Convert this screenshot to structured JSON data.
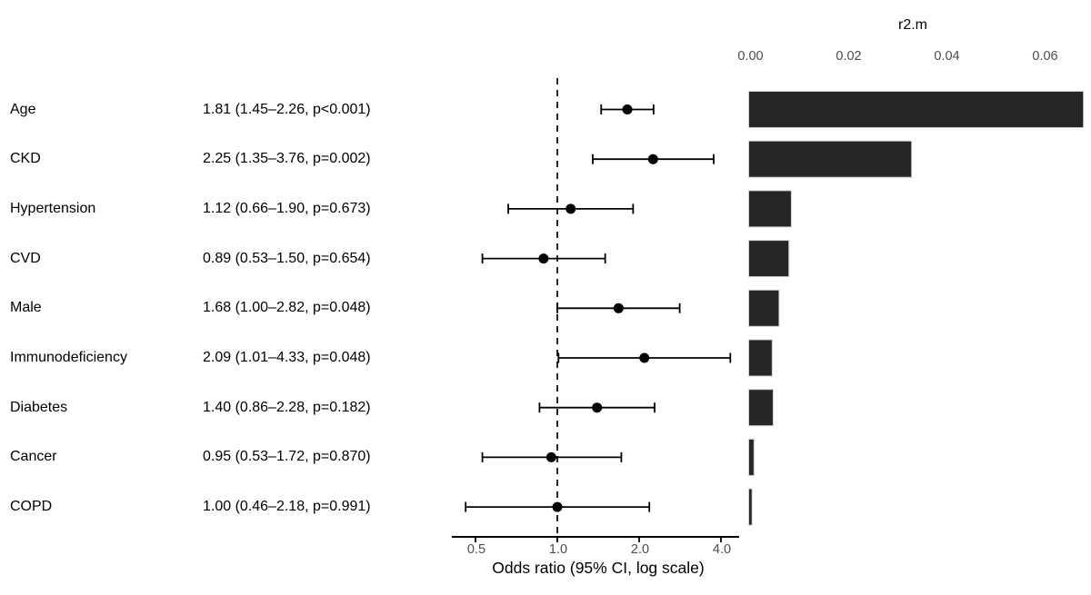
{
  "figure": {
    "background": "#ffffff",
    "text_color": "#000000",
    "tick_text_color": "#4d4d4d",
    "point_color": "#000000",
    "ci_line_color": "#000000",
    "reference_line_color": "#000000",
    "bar_fill": "#262626",
    "bar_border": "#cfcfcf",
    "axis_line_color": "#000000"
  },
  "chart_data": [
    {
      "type": "scatter",
      "subtype": "forest-plot",
      "xlabel": "Odds ratio (95% CI, log scale)",
      "x_scale": "log",
      "x_ticks": [
        "0.5",
        "1.0",
        "2.0",
        "4.0"
      ],
      "x_tick_values": [
        0.5,
        1.0,
        2.0,
        4.0
      ],
      "x_range": [
        0.41,
        4.8
      ],
      "reference_line": 1.0,
      "grid": "off",
      "rows": [
        {
          "label": "Age",
          "estimate": "1.81 (1.45–2.26, p<0.001)",
          "or": 1.81,
          "lo": 1.45,
          "hi": 2.26,
          "p": "<0.001"
        },
        {
          "label": "CKD",
          "estimate": "2.25 (1.35–3.76, p=0.002)",
          "or": 2.25,
          "lo": 1.35,
          "hi": 3.76,
          "p": "0.002"
        },
        {
          "label": "Hypertension",
          "estimate": "1.12 (0.66–1.90, p=0.673)",
          "or": 1.12,
          "lo": 0.66,
          "hi": 1.9,
          "p": "0.673"
        },
        {
          "label": "CVD",
          "estimate": "0.89 (0.53–1.50, p=0.654)",
          "or": 0.89,
          "lo": 0.53,
          "hi": 1.5,
          "p": "0.654"
        },
        {
          "label": "Male",
          "estimate": "1.68 (1.00–2.82, p=0.048)",
          "or": 1.68,
          "lo": 1.0,
          "hi": 2.82,
          "p": "0.048"
        },
        {
          "label": "Immunodeficiency",
          "estimate": "2.09 (1.01–4.33, p=0.048)",
          "or": 2.09,
          "lo": 1.01,
          "hi": 4.33,
          "p": "0.048"
        },
        {
          "label": "Diabetes",
          "estimate": "1.40 (0.86–2.28, p=0.182)",
          "or": 1.4,
          "lo": 0.86,
          "hi": 2.28,
          "p": "0.182"
        },
        {
          "label": "Cancer",
          "estimate": "0.95 (0.53–1.72, p=0.870)",
          "or": 0.95,
          "lo": 0.53,
          "hi": 1.72,
          "p": "0.870"
        },
        {
          "label": "COPD",
          "estimate": "1.00 (0.46–2.18, p=0.991)",
          "or": 1.0,
          "lo": 0.46,
          "hi": 2.18,
          "p": "0.991"
        }
      ]
    },
    {
      "type": "bar",
      "orientation": "horizontal",
      "title": "r2.m",
      "categories": [
        "Age",
        "CKD",
        "Hypertension",
        "CVD",
        "Male",
        "Immunodeficiency",
        "Diabetes",
        "Cancer",
        "COPD"
      ],
      "values": [
        0.068,
        0.033,
        0.0085,
        0.008,
        0.006,
        0.0046,
        0.0048,
        0.0009,
        0.0005
      ],
      "x_ticks": [
        "0.00",
        "0.02",
        "0.04",
        "0.06"
      ],
      "x_tick_values": [
        0,
        0.02,
        0.04,
        0.06
      ],
      "xlim": [
        0,
        0.068
      ],
      "legend": "none",
      "grid": "off"
    }
  ]
}
